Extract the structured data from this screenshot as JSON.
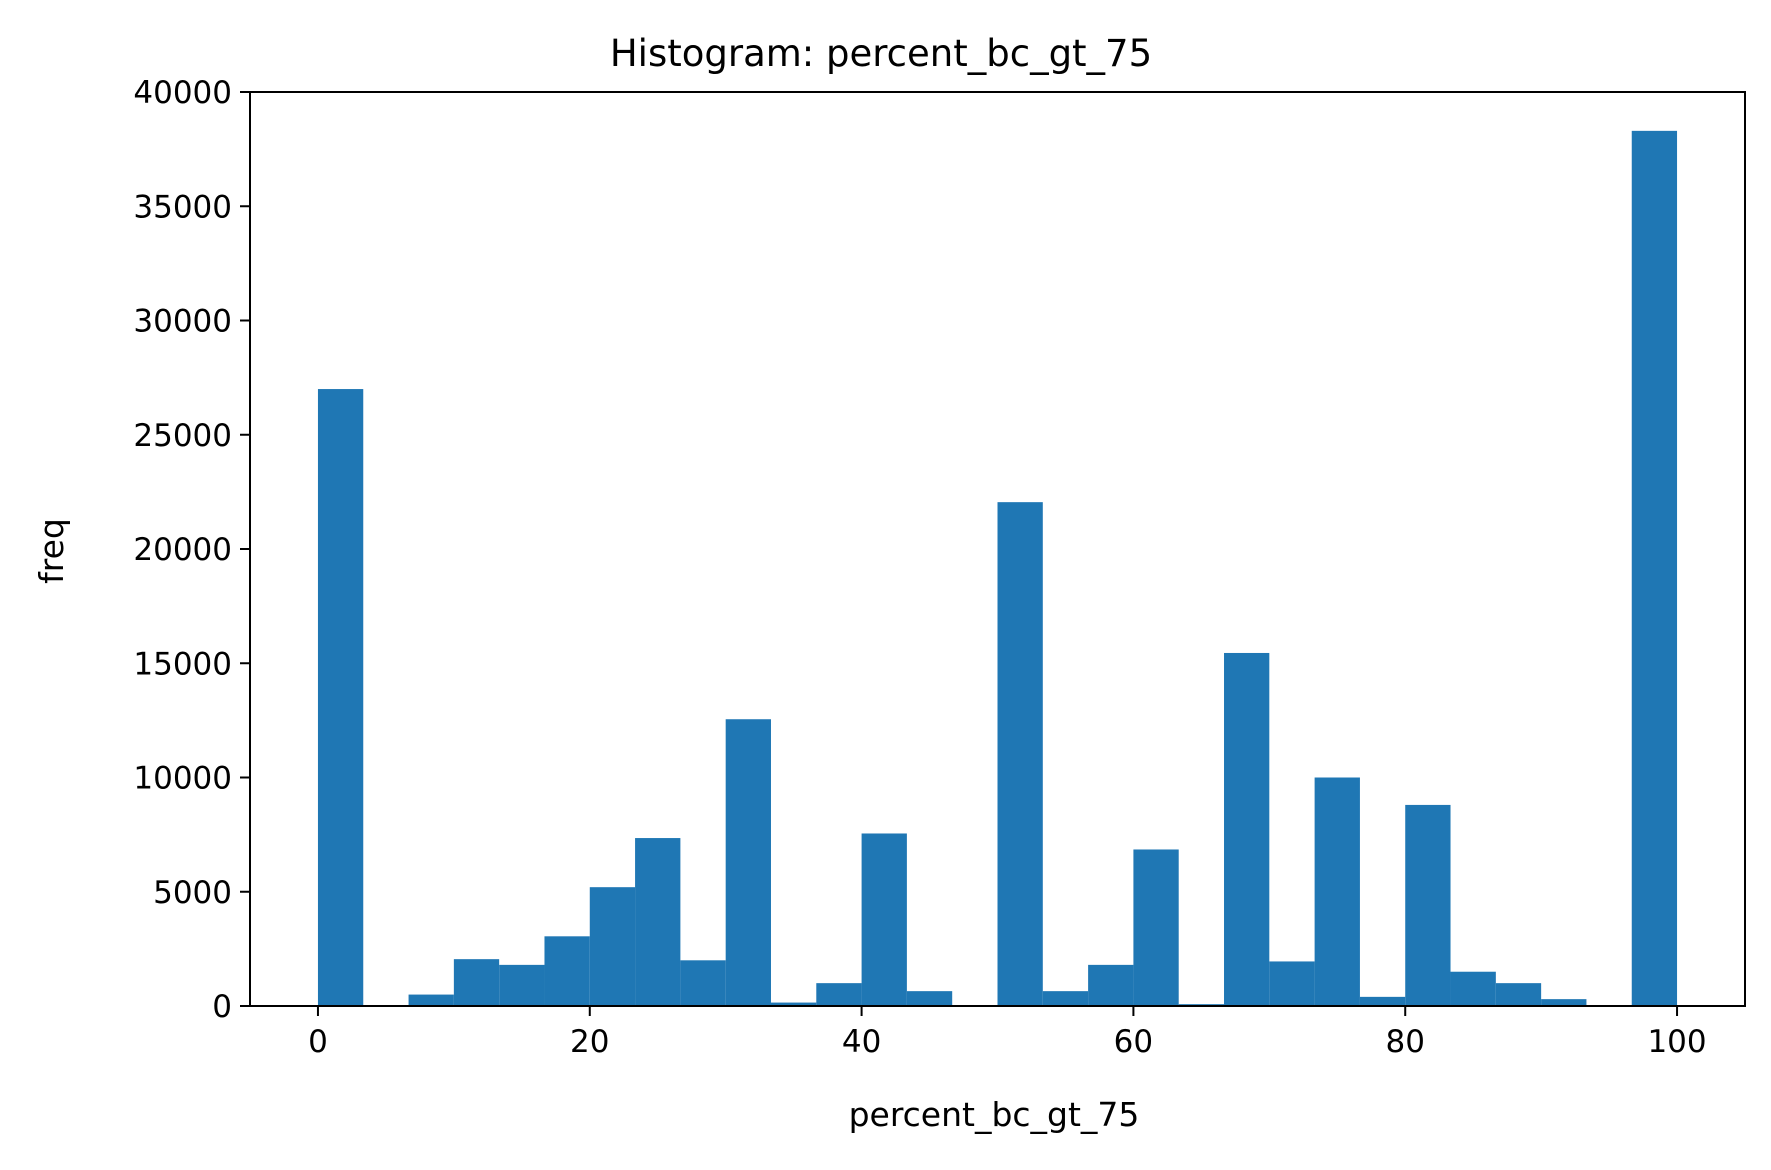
{
  "chart_data": {
    "type": "bar",
    "title": "Histogram: percent_bc_gt_75",
    "xlabel": "percent_bc_gt_75",
    "ylabel": "freq",
    "xlim": [
      -5,
      105
    ],
    "ylim": [
      0,
      40000
    ],
    "xticks": [
      0,
      20,
      40,
      60,
      80,
      100
    ],
    "yticks": [
      0,
      5000,
      10000,
      15000,
      20000,
      25000,
      30000,
      35000,
      40000
    ],
    "grid": false,
    "bar_color": "#1f77b4",
    "bin_edges": [
      0,
      3.333,
      6.667,
      10,
      13.333,
      16.667,
      20,
      23.333,
      26.667,
      30,
      33.333,
      36.667,
      40,
      43.333,
      46.667,
      50,
      53.333,
      56.667,
      60,
      63.333,
      66.667,
      70,
      73.333,
      76.667,
      80,
      83.333,
      86.667,
      90,
      93.333,
      96.667,
      100
    ],
    "values": [
      27000,
      0,
      500,
      2050,
      1800,
      3050,
      5200,
      7350,
      2000,
      12550,
      150,
      1000,
      7550,
      650,
      0,
      22050,
      650,
      1800,
      6850,
      80,
      15450,
      1950,
      10000,
      400,
      8800,
      1500,
      1000,
      300,
      0,
      38300
    ]
  }
}
